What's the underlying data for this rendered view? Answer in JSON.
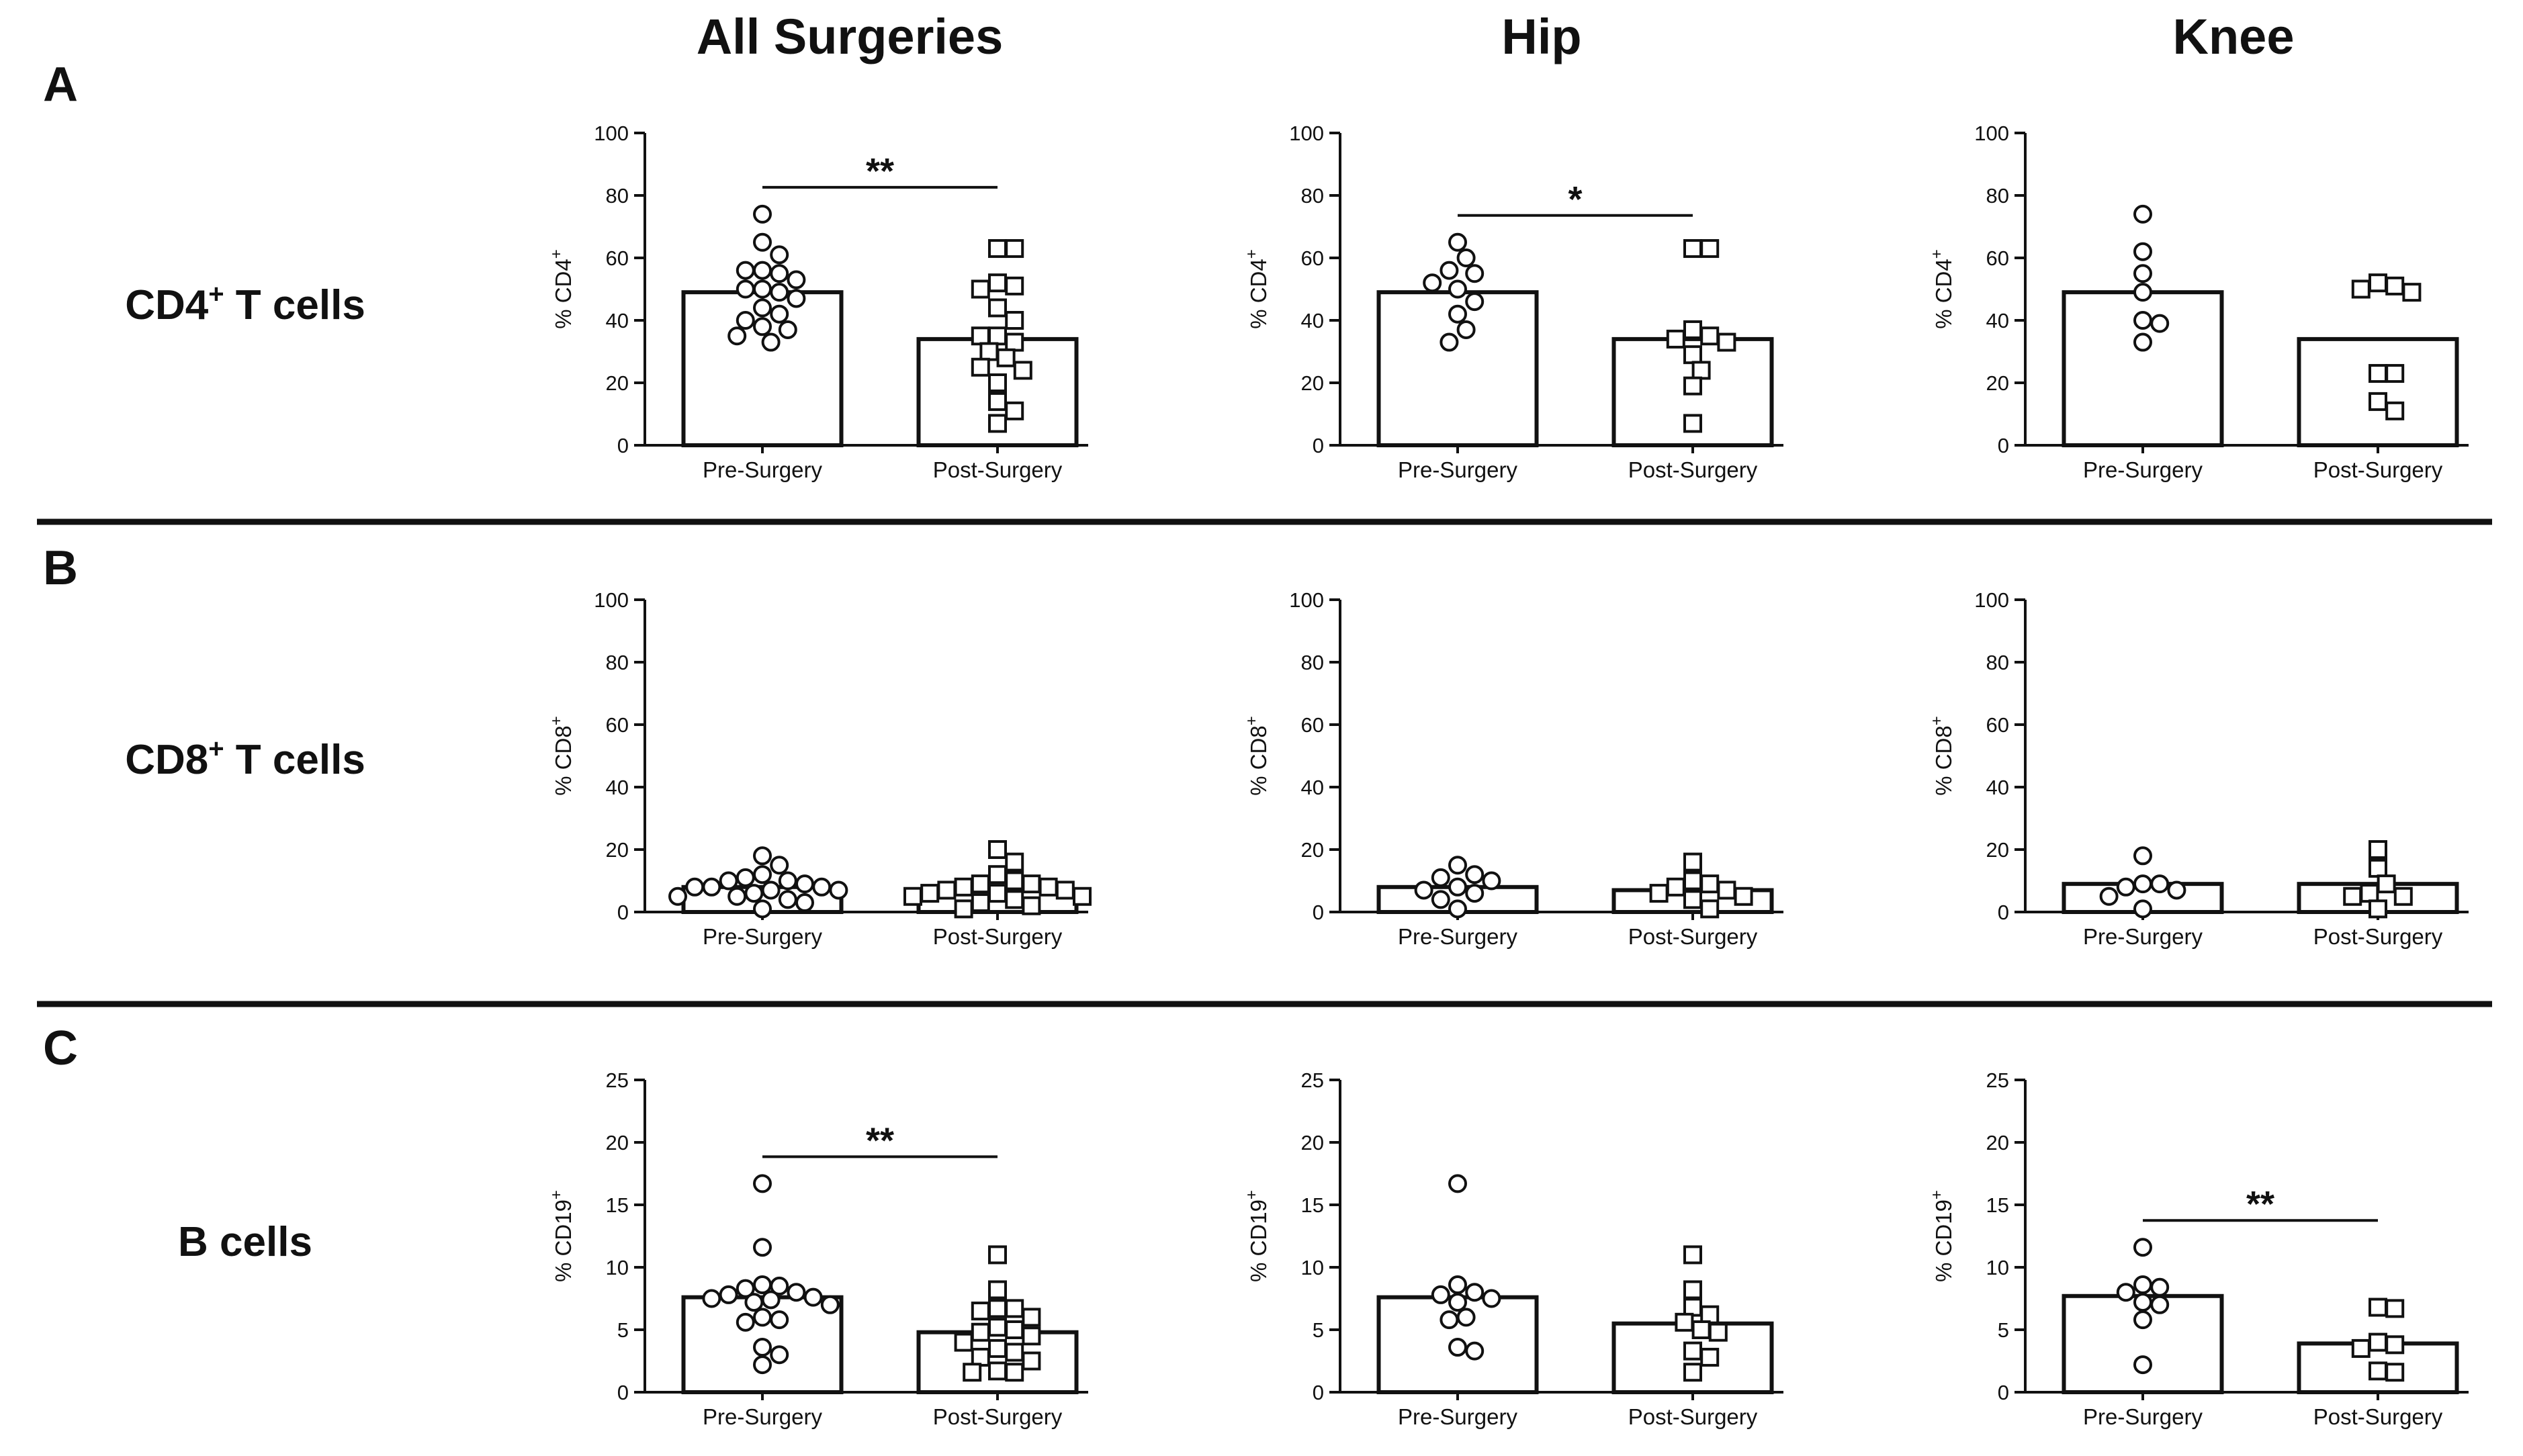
{
  "columns": [
    "All Surgeries",
    "Hip",
    "Knee"
  ],
  "rows": [
    {
      "letter": "A",
      "label": "CD4",
      "label_sup": "+",
      "label_rest": " T cells"
    },
    {
      "letter": "B",
      "label": "CD8",
      "label_sup": "+",
      "label_rest": " T cells"
    },
    {
      "letter": "C",
      "label": "B cells",
      "label_sup": "",
      "label_rest": ""
    }
  ],
  "chart_data": [
    {
      "type": "scatter",
      "row": 0,
      "col": 0,
      "ylabel": "% CD4",
      "ylabel_sup": "+",
      "ylim": [
        0,
        100
      ],
      "yticks": [
        0,
        20,
        40,
        60,
        80,
        100
      ],
      "categories": [
        "Pre-Surgery",
        "Post-Surgery"
      ],
      "means": [
        49,
        34
      ],
      "significance": "**",
      "series": [
        {
          "name": "Pre-Surgery",
          "marker": "circle",
          "values": [
            74,
            65,
            61,
            56,
            56,
            55,
            53,
            50,
            50,
            49,
            47,
            44,
            42,
            40,
            38,
            37,
            35,
            33
          ]
        },
        {
          "name": "Post-Surgery",
          "marker": "square",
          "values": [
            63,
            63,
            52,
            51,
            50,
            44,
            40,
            35,
            35,
            33,
            30,
            28,
            25,
            24,
            20,
            14,
            11,
            7
          ]
        }
      ]
    },
    {
      "type": "scatter",
      "row": 0,
      "col": 1,
      "ylabel": "% CD4",
      "ylabel_sup": "+",
      "ylim": [
        0,
        100
      ],
      "yticks": [
        0,
        20,
        40,
        60,
        80,
        100
      ],
      "categories": [
        "Pre-Surgery",
        "Post-Surgery"
      ],
      "means": [
        49,
        34
      ],
      "significance": "*",
      "series": [
        {
          "name": "Pre-Surgery",
          "marker": "circle",
          "values": [
            65,
            60,
            56,
            55,
            52,
            50,
            46,
            42,
            37,
            33
          ]
        },
        {
          "name": "Post-Surgery",
          "marker": "square",
          "values": [
            63,
            63,
            37,
            35,
            34,
            33,
            29,
            24,
            19,
            7
          ]
        }
      ]
    },
    {
      "type": "scatter",
      "row": 0,
      "col": 2,
      "ylabel": "% CD4",
      "ylabel_sup": "+",
      "ylim": [
        0,
        100
      ],
      "yticks": [
        0,
        20,
        40,
        60,
        80,
        100
      ],
      "categories": [
        "Pre-Surgery",
        "Post-Surgery"
      ],
      "means": [
        49,
        34
      ],
      "significance": "",
      "series": [
        {
          "name": "Pre-Surgery",
          "marker": "circle",
          "values": [
            74,
            62,
            55,
            49,
            40,
            39,
            33
          ]
        },
        {
          "name": "Post-Surgery",
          "marker": "square",
          "values": [
            52,
            51,
            50,
            49,
            23,
            23,
            14,
            11
          ]
        }
      ]
    },
    {
      "type": "scatter",
      "row": 1,
      "col": 0,
      "ylabel": "% CD8",
      "ylabel_sup": "+",
      "ylim": [
        0,
        100
      ],
      "yticks": [
        0,
        20,
        40,
        60,
        80,
        100
      ],
      "categories": [
        "Pre-Surgery",
        "Post-Surgery"
      ],
      "means": [
        8,
        7
      ],
      "significance": "",
      "series": [
        {
          "name": "Pre-Surgery",
          "marker": "circle",
          "values": [
            18,
            15,
            12,
            11,
            10,
            10,
            9,
            8,
            8,
            8,
            7,
            7,
            6,
            5,
            5,
            4,
            3,
            1
          ]
        },
        {
          "name": "Post-Surgery",
          "marker": "square",
          "values": [
            20,
            16,
            12,
            10,
            9,
            9,
            8,
            8,
            7,
            7,
            6,
            6,
            5,
            5,
            4,
            3,
            2,
            1
          ]
        }
      ]
    },
    {
      "type": "scatter",
      "row": 1,
      "col": 1,
      "ylabel": "% CD8",
      "ylabel_sup": "+",
      "ylim": [
        0,
        100
      ],
      "yticks": [
        0,
        20,
        40,
        60,
        80,
        100
      ],
      "categories": [
        "Pre-Surgery",
        "Post-Surgery"
      ],
      "means": [
        8,
        7
      ],
      "significance": "",
      "series": [
        {
          "name": "Pre-Surgery",
          "marker": "circle",
          "values": [
            15,
            12,
            11,
            10,
            8,
            7,
            6,
            4,
            1
          ]
        },
        {
          "name": "Post-Surgery",
          "marker": "square",
          "values": [
            16,
            10,
            9,
            8,
            7,
            6,
            5,
            4,
            1
          ]
        }
      ]
    },
    {
      "type": "scatter",
      "row": 1,
      "col": 2,
      "ylabel": "% CD8",
      "ylabel_sup": "+",
      "ylim": [
        0,
        100
      ],
      "yticks": [
        0,
        20,
        40,
        60,
        80,
        100
      ],
      "categories": [
        "Pre-Surgery",
        "Post-Surgery"
      ],
      "means": [
        9,
        9
      ],
      "significance": "",
      "series": [
        {
          "name": "Pre-Surgery",
          "marker": "circle",
          "values": [
            18,
            9,
            9,
            8,
            7,
            5,
            1
          ]
        },
        {
          "name": "Post-Surgery",
          "marker": "square",
          "values": [
            20,
            14,
            9,
            6,
            5,
            5,
            1
          ]
        }
      ]
    },
    {
      "type": "scatter",
      "row": 2,
      "col": 0,
      "ylabel": "% CD19",
      "ylabel_sup": "+",
      "ylim": [
        0,
        25
      ],
      "yticks": [
        0,
        5,
        10,
        15,
        20,
        25
      ],
      "categories": [
        "Pre-Surgery",
        "Post-Surgery"
      ],
      "means": [
        7.6,
        4.8
      ],
      "significance": "**",
      "series": [
        {
          "name": "Pre-Surgery",
          "marker": "circle",
          "values": [
            16.7,
            11.6,
            8.6,
            8.5,
            8.3,
            8.0,
            7.8,
            7.6,
            7.5,
            7.4,
            7.2,
            7.0,
            6.0,
            5.8,
            5.6,
            3.6,
            3.0,
            2.2
          ]
        },
        {
          "name": "Post-Surgery",
          "marker": "square",
          "values": [
            11.0,
            8.2,
            6.7,
            6.7,
            6.5,
            6.0,
            5.2,
            5.0,
            4.8,
            4.5,
            4.0,
            3.5,
            3.2,
            2.8,
            2.5,
            1.7,
            1.6,
            1.6
          ]
        }
      ]
    },
    {
      "type": "scatter",
      "row": 2,
      "col": 1,
      "ylabel": "% CD19",
      "ylabel_sup": "+",
      "ylim": [
        0,
        25
      ],
      "yticks": [
        0,
        5,
        10,
        15,
        20,
        25
      ],
      "categories": [
        "Pre-Surgery",
        "Post-Surgery"
      ],
      "means": [
        7.6,
        5.5
      ],
      "significance": "",
      "series": [
        {
          "name": "Pre-Surgery",
          "marker": "circle",
          "values": [
            16.7,
            8.6,
            8.0,
            7.8,
            7.5,
            7.2,
            6.0,
            5.8,
            3.6,
            3.3
          ]
        },
        {
          "name": "Post-Surgery",
          "marker": "square",
          "values": [
            11.0,
            8.2,
            6.8,
            6.2,
            5.6,
            5.0,
            4.8,
            3.3,
            2.8,
            1.6
          ]
        }
      ]
    },
    {
      "type": "scatter",
      "row": 2,
      "col": 2,
      "ylabel": "% CD19",
      "ylabel_sup": "+",
      "ylim": [
        0,
        25
      ],
      "yticks": [
        0,
        5,
        10,
        15,
        20,
        25
      ],
      "categories": [
        "Pre-Surgery",
        "Post-Surgery"
      ],
      "means": [
        7.7,
        3.9
      ],
      "significance": "**",
      "series": [
        {
          "name": "Pre-Surgery",
          "marker": "circle",
          "values": [
            11.6,
            8.6,
            8.4,
            8.0,
            7.2,
            7.0,
            5.8,
            2.2
          ]
        },
        {
          "name": "Post-Surgery",
          "marker": "square",
          "values": [
            6.8,
            6.7,
            4.0,
            3.8,
            3.5,
            1.7,
            1.6
          ]
        }
      ]
    }
  ]
}
